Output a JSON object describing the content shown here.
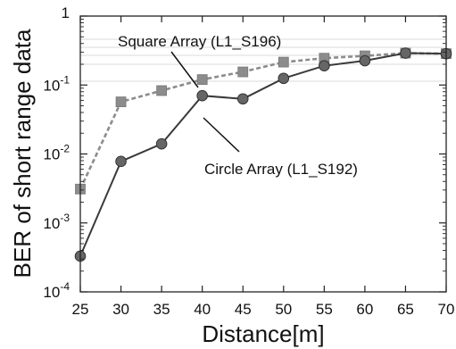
{
  "chart_data": {
    "type": "line",
    "title": "",
    "xlabel": "Distance[m]",
    "ylabel": "BER of short range data",
    "xlim": [
      25,
      70
    ],
    "ylim": [
      0.0001,
      1
    ],
    "yscale": "log",
    "grid": false,
    "x_ticks": [
      "25",
      "30",
      "35",
      "40",
      "45",
      "50",
      "55",
      "60",
      "65",
      "70"
    ],
    "y_ticks": [
      {
        "base": "10",
        "exp": "-4"
      },
      {
        "base": "10",
        "exp": "-3"
      },
      {
        "base": "10",
        "exp": "-2"
      },
      {
        "base": "10",
        "exp": "-1"
      },
      {
        "base": "1",
        "exp": ""
      }
    ],
    "series": [
      {
        "name": "Square Array (L1_S196)",
        "marker": "square",
        "line_style": "dashed",
        "color": "#8c8c8c",
        "x": [
          25,
          30,
          35,
          40,
          45,
          50,
          55,
          60,
          65,
          70
        ],
        "values": [
          0.0031,
          0.057,
          0.083,
          0.12,
          0.155,
          0.215,
          0.245,
          0.265,
          0.29,
          0.285
        ]
      },
      {
        "name": "Circle Array (L1_S192)",
        "marker": "circle",
        "line_style": "solid",
        "color": "#3a3a3a",
        "x": [
          25,
          30,
          35,
          40,
          45,
          50,
          55,
          60,
          65,
          70
        ],
        "values": [
          0.00033,
          0.0078,
          0.014,
          0.07,
          0.063,
          0.125,
          0.19,
          0.225,
          0.29,
          0.285
        ]
      }
    ]
  }
}
